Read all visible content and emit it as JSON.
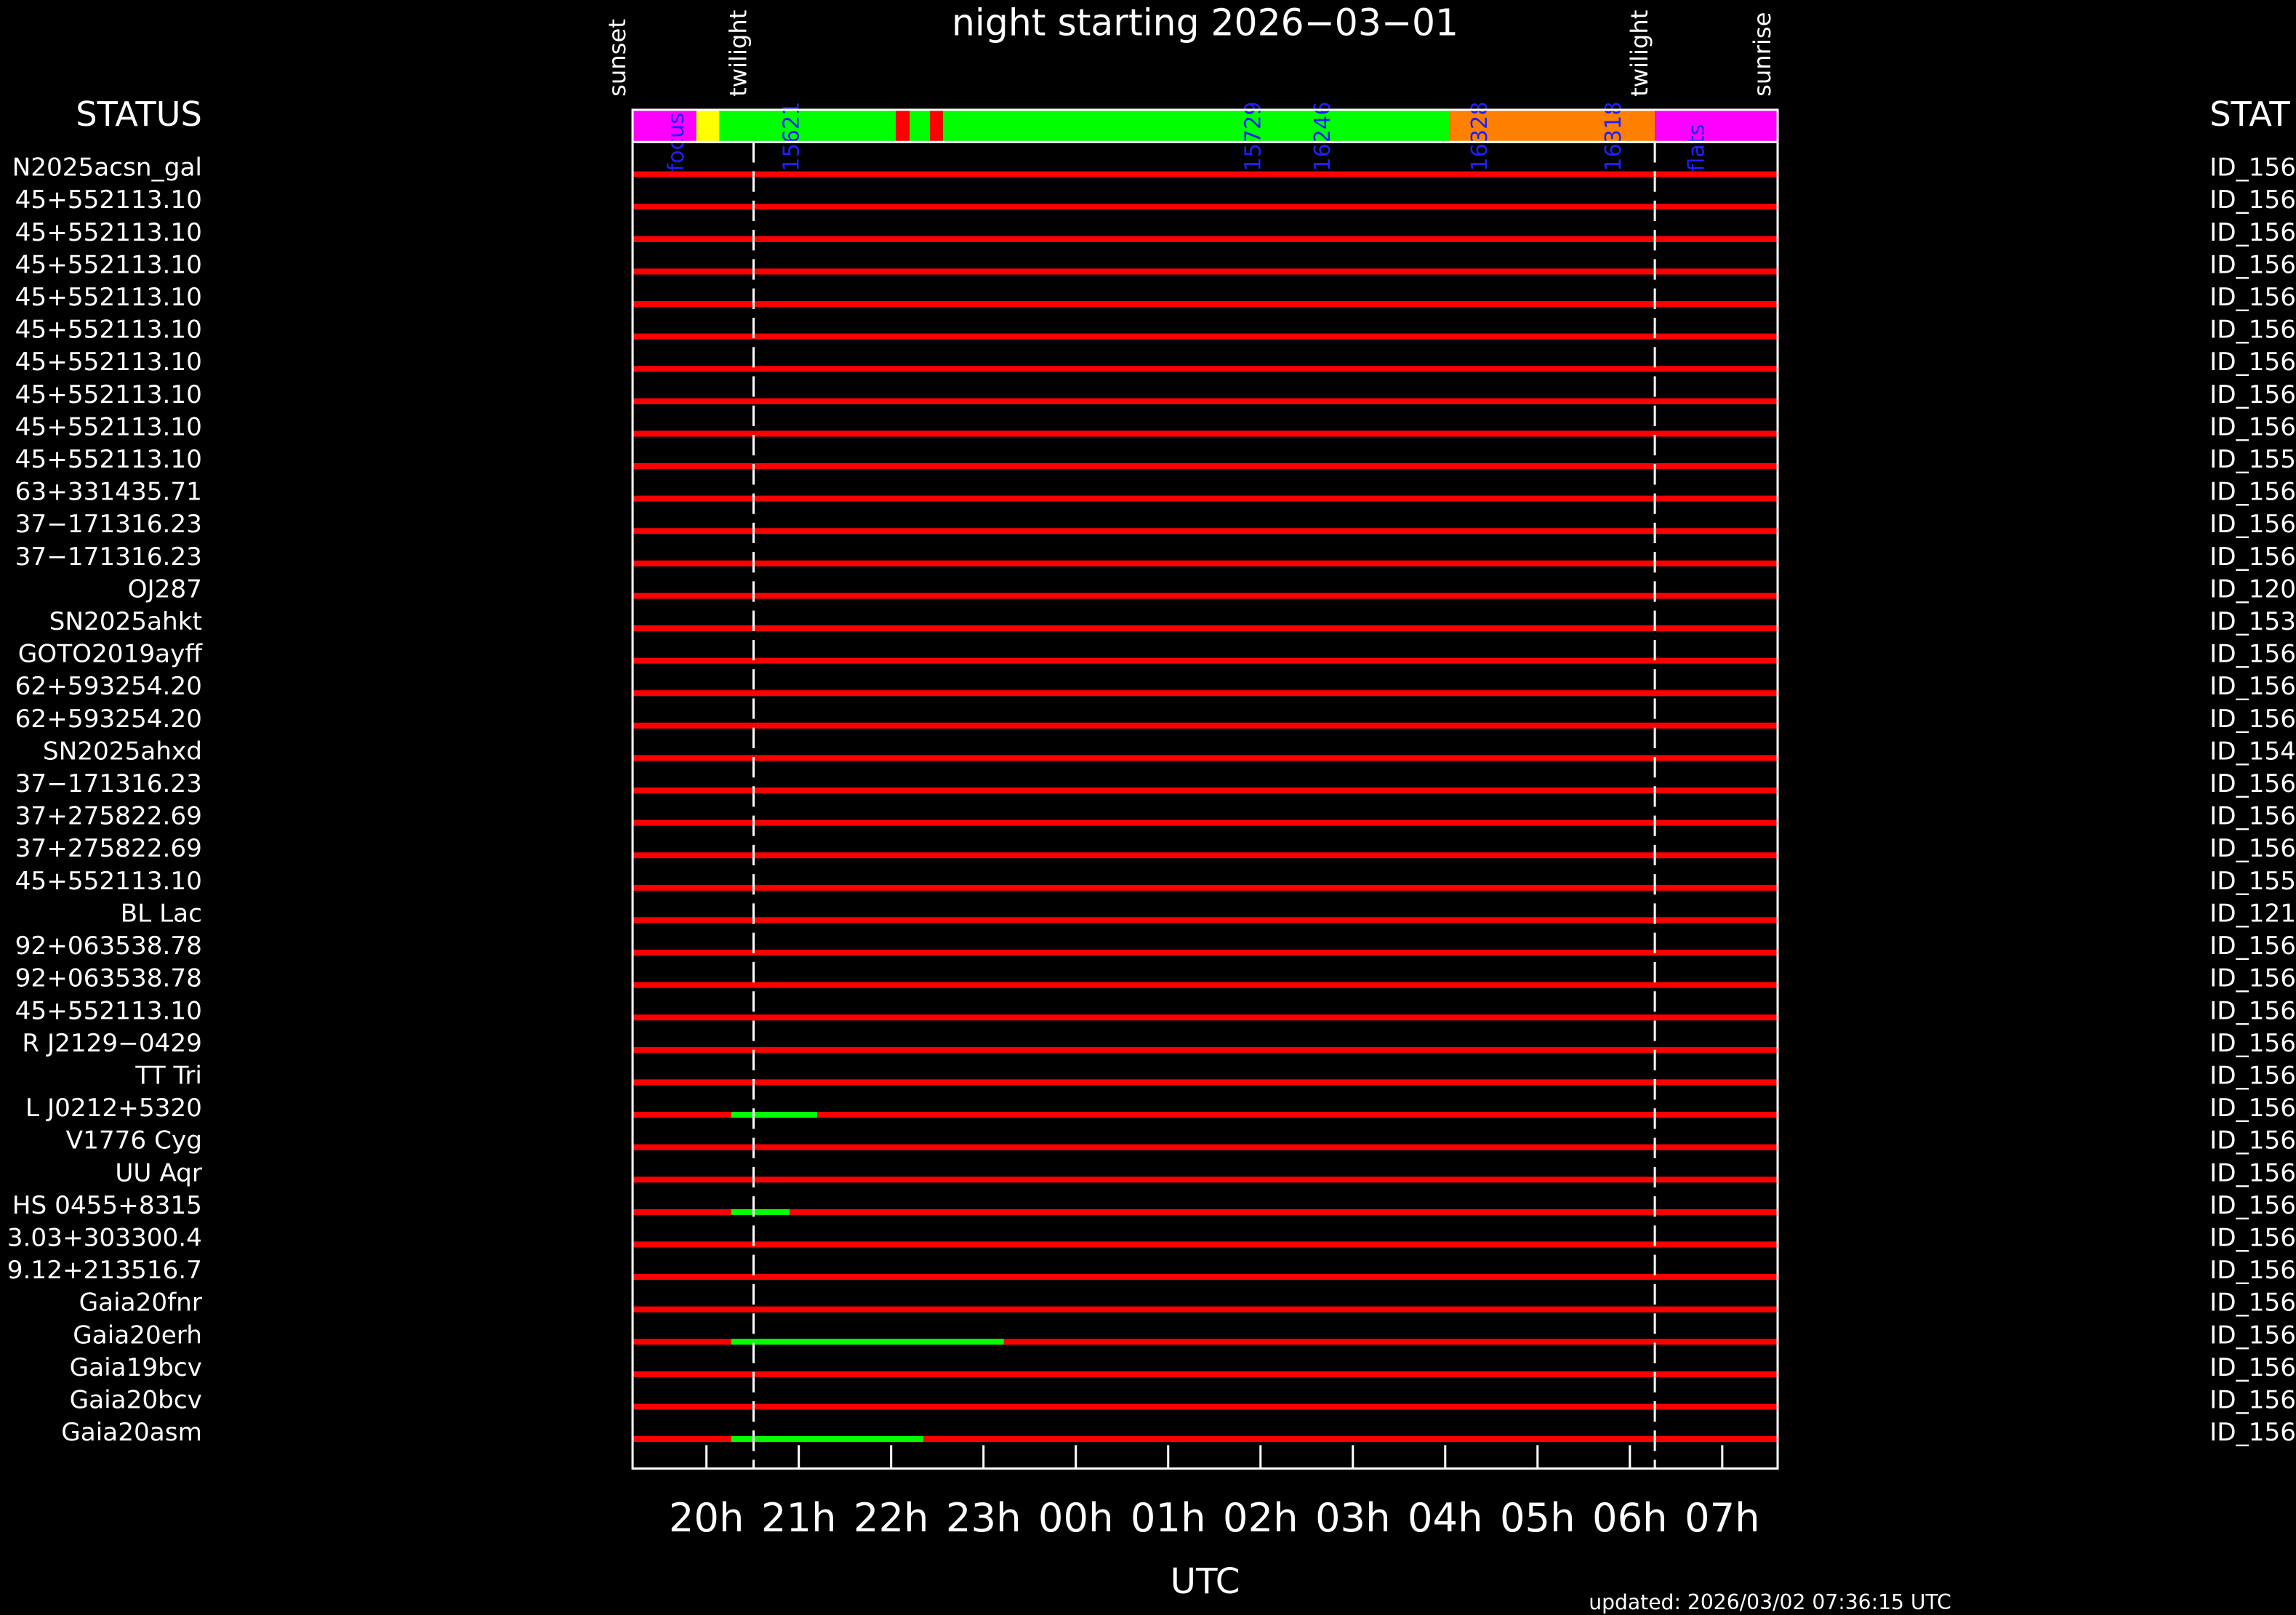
{
  "chart_data": {
    "type": "timeline",
    "title": "night starting 2026−03−01",
    "left_header": "STATUS",
    "right_header": "STAT",
    "xlabel": "UTC",
    "footer": "updated: 2026/03/02 07:36:15 UTC",
    "xlim": [
      19.2,
      31.6
    ],
    "xticks": [
      {
        "value": 20,
        "label": "20h"
      },
      {
        "value": 21,
        "label": "21h"
      },
      {
        "value": 22,
        "label": "22h"
      },
      {
        "value": 23,
        "label": "23h"
      },
      {
        "value": 24,
        "label": "00h"
      },
      {
        "value": 25,
        "label": "01h"
      },
      {
        "value": 26,
        "label": "02h"
      },
      {
        "value": 27,
        "label": "03h"
      },
      {
        "value": 28,
        "label": "04h"
      },
      {
        "value": 29,
        "label": "05h"
      },
      {
        "value": 30,
        "label": "06h"
      },
      {
        "value": 31,
        "label": "07h"
      }
    ],
    "events": [
      {
        "label": "sunset",
        "x": 19.2,
        "dashed": false
      },
      {
        "label": "twilight",
        "x": 20.51,
        "dashed": true
      },
      {
        "label": "twilight",
        "x": 30.27,
        "dashed": true
      },
      {
        "label": "sunrise",
        "x": 31.6,
        "dashed": false
      }
    ],
    "status_bar": [
      {
        "start": 19.2,
        "end": 19.89,
        "color": "#ff00ff"
      },
      {
        "start": 19.89,
        "end": 20.14,
        "color": "#ffff00"
      },
      {
        "start": 20.14,
        "end": 22.05,
        "color": "#00ff00"
      },
      {
        "start": 22.05,
        "end": 22.2,
        "color": "#ff0000"
      },
      {
        "start": 22.2,
        "end": 22.42,
        "color": "#00ff00"
      },
      {
        "start": 22.42,
        "end": 22.56,
        "color": "#ff0000"
      },
      {
        "start": 22.56,
        "end": 28.05,
        "color": "#00ff00"
      },
      {
        "start": 28.05,
        "end": 30.27,
        "color": "#ff8000"
      },
      {
        "start": 30.27,
        "end": 31.6,
        "color": "#ff00ff"
      }
    ],
    "status_labels": [
      {
        "label": "focus",
        "x": 19.75
      },
      {
        "label": "15621",
        "x": 21.0
      },
      {
        "label": "15729",
        "x": 26.0
      },
      {
        "label": "16246",
        "x": 26.75
      },
      {
        "label": "16328",
        "x": 28.45
      },
      {
        "label": "16318",
        "x": 29.9
      },
      {
        "label": "flats",
        "x": 30.8
      }
    ],
    "scheduled_color": "#ff0000",
    "observed_color": "#00ff00",
    "rows": [
      {
        "label": "N2025acsn_gal",
        "id": "ID_156",
        "scheduled": [
          19.2,
          31.6
        ]
      },
      {
        "label": "45+552113.10",
        "id": "ID_156",
        "scheduled": [
          19.2,
          31.6
        ]
      },
      {
        "label": "45+552113.10",
        "id": "ID_156",
        "scheduled": [
          19.2,
          31.6
        ]
      },
      {
        "label": "45+552113.10",
        "id": "ID_156",
        "scheduled": [
          19.2,
          31.6
        ]
      },
      {
        "label": "45+552113.10",
        "id": "ID_156",
        "scheduled": [
          19.2,
          31.6
        ]
      },
      {
        "label": "45+552113.10",
        "id": "ID_156",
        "scheduled": [
          19.2,
          31.6
        ]
      },
      {
        "label": "45+552113.10",
        "id": "ID_156",
        "scheduled": [
          19.2,
          31.6
        ]
      },
      {
        "label": "45+552113.10",
        "id": "ID_156",
        "scheduled": [
          19.2,
          31.6
        ]
      },
      {
        "label": "45+552113.10",
        "id": "ID_156",
        "scheduled": [
          19.2,
          31.6
        ]
      },
      {
        "label": "45+552113.10",
        "id": "ID_155",
        "scheduled": [
          19.2,
          31.6
        ]
      },
      {
        "label": "63+331435.71",
        "id": "ID_156",
        "scheduled": [
          19.2,
          31.6
        ]
      },
      {
        "label": "37−171316.23",
        "id": "ID_156",
        "scheduled": [
          19.2,
          31.6
        ]
      },
      {
        "label": "37−171316.23",
        "id": "ID_156",
        "scheduled": [
          19.2,
          31.6
        ]
      },
      {
        "label": "OJ287",
        "id": "ID_120",
        "scheduled": [
          19.2,
          31.6
        ]
      },
      {
        "label": "SN2025ahkt",
        "id": "ID_153",
        "scheduled": [
          19.2,
          31.6
        ]
      },
      {
        "label": "GOTO2019ayff",
        "id": "ID_156",
        "scheduled": [
          19.2,
          31.6
        ]
      },
      {
        "label": "62+593254.20",
        "id": "ID_156",
        "scheduled": [
          19.2,
          31.6
        ]
      },
      {
        "label": "62+593254.20",
        "id": "ID_156",
        "scheduled": [
          19.2,
          31.6
        ]
      },
      {
        "label": "SN2025ahxd",
        "id": "ID_154",
        "scheduled": [
          19.2,
          31.6
        ]
      },
      {
        "label": "37−171316.23",
        "id": "ID_156",
        "scheduled": [
          19.2,
          31.6
        ]
      },
      {
        "label": "37+275822.69",
        "id": "ID_156",
        "scheduled": [
          19.2,
          31.6
        ]
      },
      {
        "label": "37+275822.69",
        "id": "ID_156",
        "scheduled": [
          19.2,
          31.6
        ]
      },
      {
        "label": "45+552113.10",
        "id": "ID_155",
        "scheduled": [
          19.2,
          31.6
        ]
      },
      {
        "label": "BL Lac",
        "id": "ID_121",
        "scheduled": [
          19.2,
          31.6
        ]
      },
      {
        "label": "92+063538.78",
        "id": "ID_156",
        "scheduled": [
          19.2,
          31.6
        ]
      },
      {
        "label": "92+063538.78",
        "id": "ID_156",
        "scheduled": [
          19.2,
          31.6
        ]
      },
      {
        "label": "45+552113.10",
        "id": "ID_156",
        "scheduled": [
          19.2,
          31.6
        ]
      },
      {
        "label": "R J2129−0429",
        "id": "ID_156",
        "scheduled": [
          19.2,
          31.6
        ]
      },
      {
        "label": "TT Tri",
        "id": "ID_156",
        "scheduled": [
          19.2,
          31.6
        ]
      },
      {
        "label": "L J0212+5320",
        "id": "ID_156",
        "scheduled": [
          19.2,
          31.6
        ],
        "observed": [
          20.27,
          21.2
        ]
      },
      {
        "label": "V1776 Cyg",
        "id": "ID_156",
        "scheduled": [
          19.2,
          31.6
        ]
      },
      {
        "label": "UU Aqr",
        "id": "ID_156",
        "scheduled": [
          19.2,
          31.6
        ]
      },
      {
        "label": "HS 0455+8315",
        "id": "ID_156",
        "scheduled": [
          19.2,
          31.6
        ],
        "observed": [
          20.27,
          20.9
        ]
      },
      {
        "label": "3.03+303300.4",
        "id": "ID_156",
        "scheduled": [
          19.2,
          31.6
        ]
      },
      {
        "label": "9.12+213516.7",
        "id": "ID_156",
        "scheduled": [
          19.2,
          31.6
        ]
      },
      {
        "label": "Gaia20fnr",
        "id": "ID_156",
        "scheduled": [
          19.2,
          31.6
        ]
      },
      {
        "label": "Gaia20erh",
        "id": "ID_156",
        "scheduled": [
          19.2,
          31.6
        ],
        "observed": [
          20.27,
          23.22
        ]
      },
      {
        "label": "Gaia19bcv",
        "id": "ID_156",
        "scheduled": [
          19.2,
          31.6
        ]
      },
      {
        "label": "Gaia20bcv",
        "id": "ID_156",
        "scheduled": [
          19.2,
          31.6
        ]
      },
      {
        "label": "Gaia20asm",
        "id": "ID_156",
        "scheduled": [
          19.2,
          31.6
        ],
        "observed": [
          20.27,
          22.35
        ]
      }
    ]
  }
}
